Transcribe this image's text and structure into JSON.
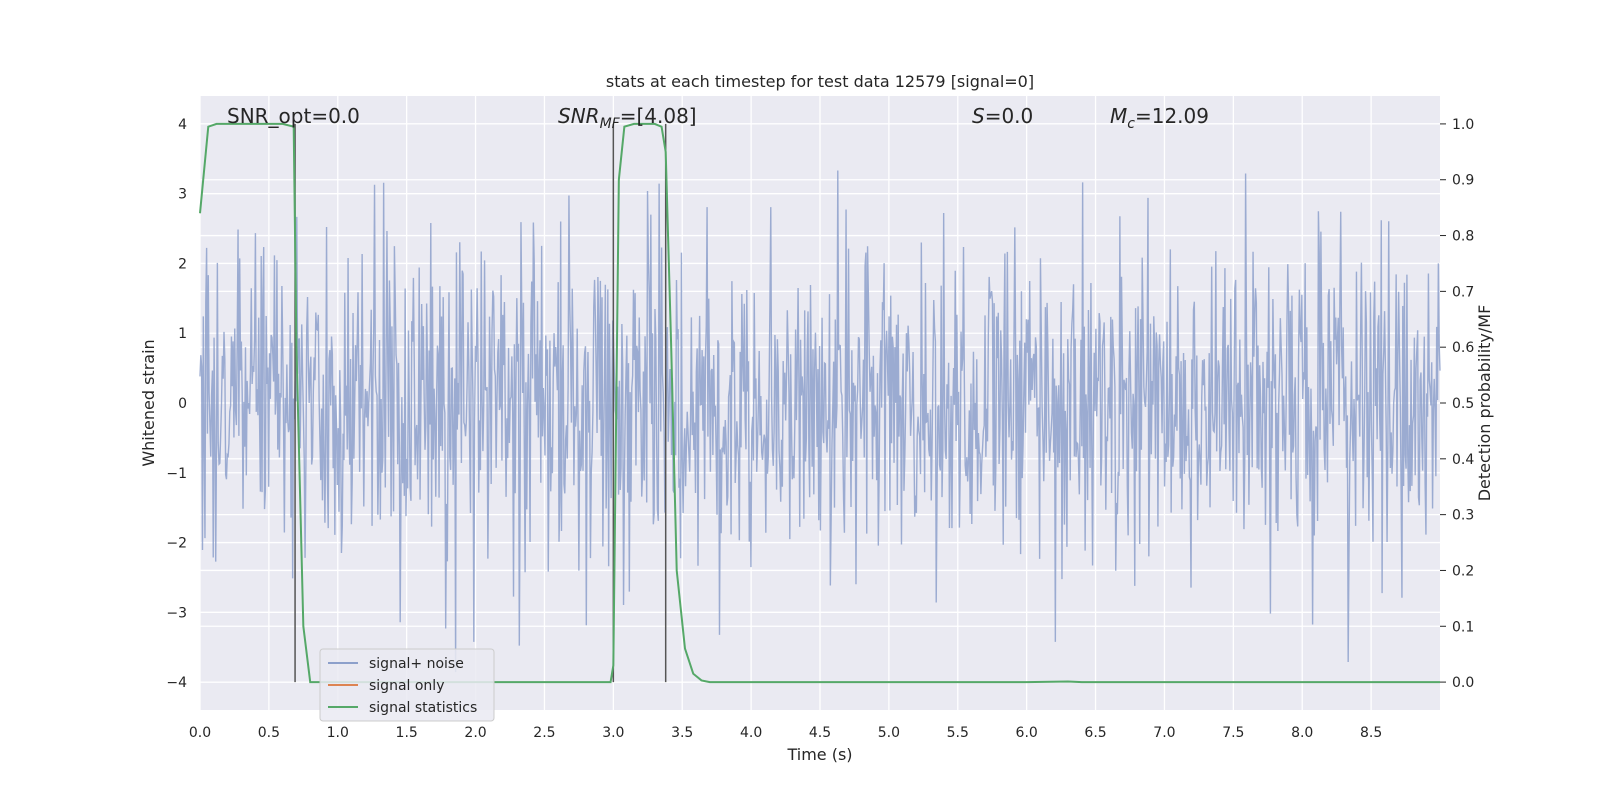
{
  "chart_data": {
    "type": "line",
    "title": "stats at each timestep for test data 12579 [signal=0]",
    "xlabel": "Time (s)",
    "ylabel": "Whitened strain",
    "y2label": "Detection probability/MF",
    "xlim": [
      0,
      9.0
    ],
    "ylim": [
      -4.4,
      4.4
    ],
    "y2lim": [
      -0.05,
      1.05
    ],
    "x_ticks": [
      "0.0",
      "0.5",
      "1.0",
      "1.5",
      "2.0",
      "2.5",
      "3.0",
      "3.5",
      "4.0",
      "4.5",
      "5.0",
      "5.5",
      "6.0",
      "6.5",
      "7.0",
      "7.5",
      "8.0",
      "8.5"
    ],
    "y_ticks": [
      "4",
      "3",
      "2",
      "1",
      "0",
      "−1",
      "−2",
      "−3",
      "−4"
    ],
    "y2_ticks": [
      "1.0",
      "0.9",
      "0.8",
      "0.7",
      "0.6",
      "0.5",
      "0.4",
      "0.3",
      "0.2",
      "0.1",
      "0.0"
    ],
    "grid": true,
    "legend_position": "lower-left",
    "annotations": {
      "snr_opt": "SNR_opt=0.0",
      "snr_mf_main": "SNR",
      "snr_mf_sub": "MF",
      "snr_mf_value": "=[4.08]",
      "s_main": "S",
      "s_value": "=0.0",
      "mc_main": "M",
      "mc_sub": "c",
      "mc_value": "=12.09"
    },
    "vertical_lines": [
      0.69,
      3.0,
      3.38
    ],
    "series": [
      {
        "name": "signal+ noise",
        "color": "#8da0cb",
        "description_values": "noise amplitude ~ ±1.6 typical, spikes to ±3.8",
        "noise_seed": 12579,
        "sample_count": 1500
      },
      {
        "name": "signal only",
        "color": "#dd8452",
        "x": [
          0,
          9.0
        ],
        "y": [
          0,
          0
        ]
      },
      {
        "name": "signal statistics",
        "color": "#55a868",
        "x": [
          0.0,
          0.06,
          0.12,
          0.2,
          0.4,
          0.6,
          0.68,
          0.7,
          0.75,
          0.8,
          1.0,
          1.5,
          2.0,
          2.5,
          2.98,
          3.0,
          3.04,
          3.08,
          3.15,
          3.3,
          3.35,
          3.38,
          3.42,
          3.46,
          3.52,
          3.58,
          3.64,
          3.7,
          4.0,
          5.0,
          6.0,
          6.3,
          6.4,
          7.0,
          8.0,
          9.0
        ],
        "y": [
          0.84,
          0.995,
          1.0,
          1.0,
          1.0,
          1.0,
          0.995,
          0.6,
          0.1,
          0.0,
          0.0,
          0.0,
          0.0,
          0.0,
          0.0,
          0.03,
          0.9,
          0.995,
          1.0,
          1.0,
          0.995,
          0.95,
          0.6,
          0.2,
          0.06,
          0.015,
          0.003,
          0.0,
          0.0,
          0.0,
          0.0,
          0.001,
          0.0,
          0.0,
          0.0,
          0.0
        ]
      }
    ]
  },
  "legend": {
    "items": [
      {
        "label": "signal+ noise",
        "color": "#8da0cb"
      },
      {
        "label": "signal only",
        "color": "#dd8452"
      },
      {
        "label": "signal statistics",
        "color": "#55a868"
      }
    ]
  }
}
